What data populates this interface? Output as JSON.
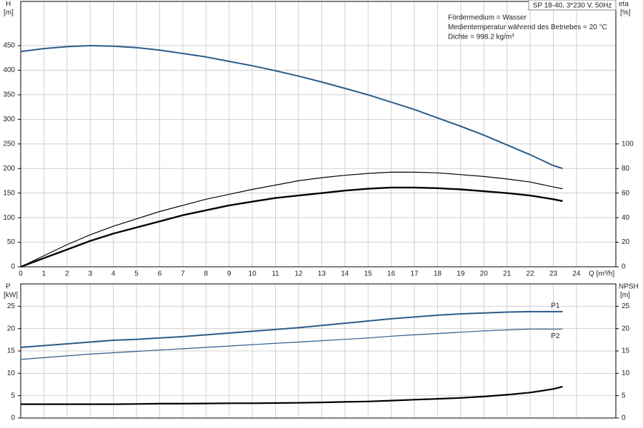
{
  "chart_data": [
    {
      "type": "line",
      "title": "SP 18-40, 3*230 V, 50Hz",
      "annotations": [
        "Fördermedium = Wasser",
        "Medientemperatur während des Betriebes = 20 °C",
        "Dichte = 998.2 kg/m³"
      ],
      "x_label": "Q [m³/h]",
      "y_label": "H",
      "y_unit": "[m]",
      "y2_label": "eta",
      "y2_unit": "[%]",
      "x": [
        0,
        1,
        2,
        3,
        4,
        5,
        6,
        7,
        8,
        9,
        10,
        11,
        12,
        13,
        14,
        15,
        16,
        17,
        18,
        19,
        20,
        21,
        22,
        23,
        23.4
      ],
      "xlim": [
        0,
        25.7
      ],
      "xticks": [
        0,
        1,
        2,
        3,
        4,
        5,
        6,
        7,
        8,
        9,
        10,
        11,
        12,
        13,
        14,
        15,
        16,
        17,
        18,
        19,
        20,
        21,
        22,
        23,
        24
      ],
      "ylim": [
        0,
        540
      ],
      "yticks": [
        0,
        50,
        100,
        150,
        200,
        250,
        300,
        350,
        400,
        450
      ],
      "y2lim": [
        0,
        216
      ],
      "y2ticks": [
        0,
        20,
        40,
        60,
        80,
        100
      ],
      "grid": true,
      "series": [
        {
          "color": "#2a5a8a",
          "linewidth": 2,
          "values": [
            438,
            444,
            448,
            450,
            449,
            446,
            441,
            434,
            427,
            418,
            409,
            399,
            388,
            376,
            363,
            350,
            335,
            320,
            303,
            286,
            268,
            248,
            228,
            206,
            200
          ]
        },
        {
          "color": "#000000",
          "linewidth": 1.2,
          "axis": "y2",
          "values": [
            0,
            9,
            18,
            26,
            33,
            39,
            45,
            50,
            55,
            59,
            63,
            66.5,
            70,
            72.5,
            74.5,
            76,
            77,
            77,
            76.5,
            75,
            73.5,
            71.5,
            69,
            65,
            63.5
          ]
        },
        {
          "color": "#000000",
          "linewidth": 2.4,
          "axis": "y2",
          "values": [
            0,
            7,
            14,
            21,
            27,
            32,
            37,
            42,
            46,
            50,
            53,
            56,
            58,
            60,
            62,
            63.5,
            64.5,
            64.5,
            64,
            63,
            61.5,
            60,
            58,
            55,
            53.5
          ]
        }
      ]
    },
    {
      "type": "line",
      "y_label": "P",
      "y_unit": "[kW]",
      "y2_label": "NPSH",
      "y2_unit": "[m]",
      "x": [
        0,
        1,
        2,
        3,
        4,
        5,
        6,
        7,
        8,
        9,
        10,
        11,
        12,
        13,
        14,
        15,
        16,
        17,
        18,
        19,
        20,
        21,
        22,
        23,
        23.4
      ],
      "xlim": [
        0,
        25.7
      ],
      "ylim": [
        0,
        30
      ],
      "yticks": [
        0,
        5,
        10,
        15,
        20,
        25
      ],
      "y2lim": [
        0,
        30
      ],
      "y2ticks": [
        0,
        5,
        10,
        15,
        20,
        25
      ],
      "grid": true,
      "series": [
        {
          "name": "P1",
          "color": "#2a5a8a",
          "linewidth": 2,
          "values": [
            15.8,
            16.2,
            16.6,
            17.0,
            17.4,
            17.6,
            17.9,
            18.2,
            18.6,
            19.0,
            19.4,
            19.8,
            20.2,
            20.7,
            21.2,
            21.7,
            22.2,
            22.6,
            23.0,
            23.3,
            23.5,
            23.7,
            23.8,
            23.8,
            23.8
          ]
        },
        {
          "name": "P2",
          "color": "#2a5a8a",
          "linewidth": 1.2,
          "values": [
            13.1,
            13.5,
            13.9,
            14.3,
            14.6,
            14.9,
            15.2,
            15.5,
            15.8,
            16.1,
            16.4,
            16.7,
            17.0,
            17.3,
            17.6,
            17.9,
            18.3,
            18.6,
            18.9,
            19.2,
            19.5,
            19.7,
            19.9,
            19.9,
            19.9
          ]
        },
        {
          "color": "#000000",
          "linewidth": 2.2,
          "axis": "y2",
          "values": [
            3.1,
            3.1,
            3.1,
            3.1,
            3.1,
            3.15,
            3.2,
            3.2,
            3.25,
            3.3,
            3.3,
            3.35,
            3.4,
            3.5,
            3.6,
            3.7,
            3.9,
            4.1,
            4.3,
            4.5,
            4.8,
            5.2,
            5.7,
            6.5,
            7.0
          ]
        }
      ]
    }
  ]
}
